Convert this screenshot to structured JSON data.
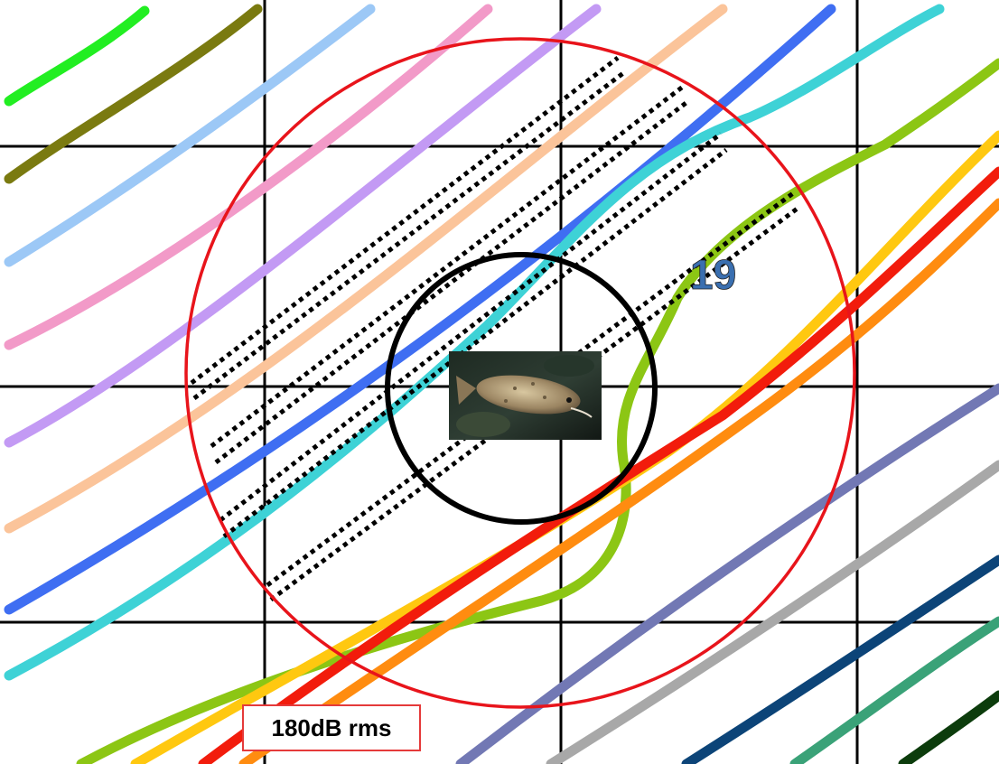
{
  "radius_label": "180dB rms",
  "line_label": "19",
  "colors": {
    "grid": "#000000",
    "radius_circle": "#e8141b",
    "inner_circle": "#000000",
    "dotted_lines": "#000000",
    "line_label": "#3a6fb0",
    "label_border": "#e53a3a"
  },
  "photo": {
    "name": "fish-photo",
    "alt": "fish"
  },
  "track_lines": [
    {
      "name": "green-track",
      "color": "#22ee22"
    },
    {
      "name": "olive-track",
      "color": "#7a7a10"
    },
    {
      "name": "light-blue-track",
      "color": "#9cc8f6"
    },
    {
      "name": "pink-track",
      "color": "#f29ac8"
    },
    {
      "name": "lavender-track",
      "color": "#c39af4"
    },
    {
      "name": "peach-track",
      "color": "#fbc49a"
    },
    {
      "name": "blue-track",
      "color": "#3f6ef2"
    },
    {
      "name": "turquoise-track",
      "color": "#3ed2d6"
    },
    {
      "name": "lime-track",
      "color": "#8cc614"
    },
    {
      "name": "yellow-track",
      "color": "#ffc810"
    },
    {
      "name": "red-track",
      "color": "#f21c0c"
    },
    {
      "name": "orange-track",
      "color": "#ff8c10"
    },
    {
      "name": "slate-blue-track",
      "color": "#7278b4"
    },
    {
      "name": "gray-track",
      "color": "#a8a8a8"
    },
    {
      "name": "navy-track",
      "color": "#0c4478"
    },
    {
      "name": "sea-green-track",
      "color": "#3aa278"
    },
    {
      "name": "dark-green-track",
      "color": "#0c3c0c"
    }
  ]
}
